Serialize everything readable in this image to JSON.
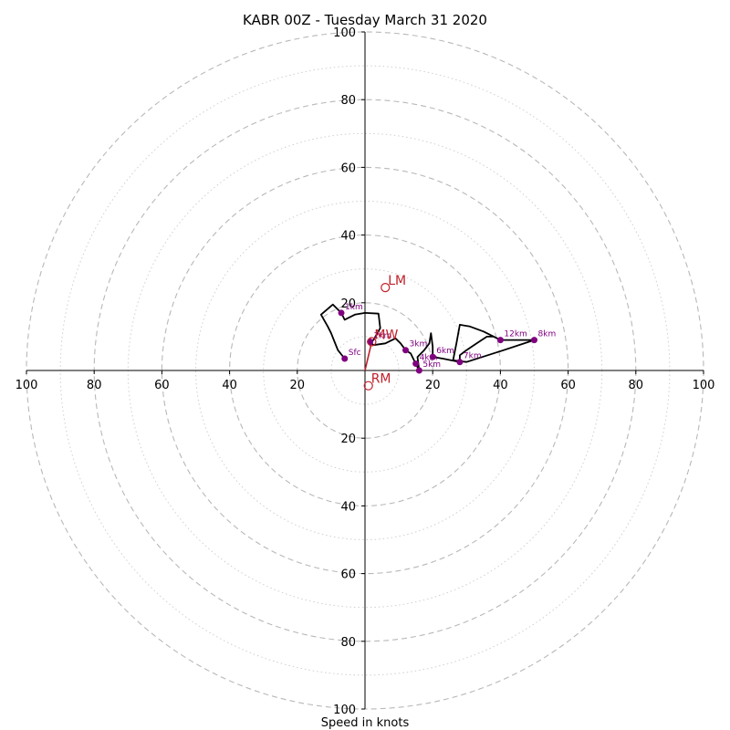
{
  "chart_data": {
    "type": "hodograph",
    "title": "KABR 00Z - Tuesday March 31 2020",
    "xlabel": "Speed in knots",
    "ylabel": "",
    "range": [
      -100,
      100
    ],
    "ticks": [
      "100",
      "80",
      "60",
      "40",
      "20",
      "20",
      "40",
      "60",
      "80",
      "100"
    ],
    "rings": [
      20,
      40,
      60,
      80,
      100
    ],
    "minor_rings": [
      10,
      30,
      50,
      70,
      90
    ],
    "grid": true,
    "hodograph_trace": [
      [
        -6,
        3.5
      ],
      [
        -8,
        6
      ],
      [
        -9,
        8.5
      ],
      [
        -10,
        11
      ],
      [
        -11,
        13
      ],
      [
        -13,
        16.5
      ],
      [
        -9.5,
        19.5
      ],
      [
        -7,
        17
      ],
      [
        -6,
        15
      ],
      [
        -3,
        16.5
      ],
      [
        0,
        17
      ],
      [
        4,
        16.8
      ],
      [
        4.5,
        12.5
      ],
      [
        2.5,
        9
      ],
      [
        1.5,
        8.5
      ],
      [
        2.5,
        7.5
      ],
      [
        6,
        8
      ],
      [
        9,
        9.5
      ],
      [
        10.5,
        8
      ],
      [
        12,
        6
      ],
      [
        13.5,
        5
      ],
      [
        15,
        2
      ],
      [
        16,
        0
      ],
      [
        15.5,
        4
      ],
      [
        17.5,
        6
      ],
      [
        19,
        8
      ],
      [
        19.5,
        11
      ],
      [
        20,
        7
      ],
      [
        20,
        4
      ],
      [
        23,
        3.5
      ],
      [
        28,
        2.5
      ],
      [
        28,
        4.5
      ],
      [
        30,
        6
      ],
      [
        33,
        8
      ],
      [
        36,
        10
      ],
      [
        38,
        10
      ],
      [
        40,
        9
      ],
      [
        42,
        9
      ],
      [
        50,
        9
      ],
      [
        41,
        6
      ],
      [
        30,
        2.5
      ],
      [
        26,
        3
      ],
      [
        27,
        8
      ],
      [
        28,
        13.5
      ],
      [
        31,
        13
      ],
      [
        35,
        11.5
      ],
      [
        40,
        9
      ]
    ],
    "height_markers": [
      {
        "label": "Sfc",
        "u": -6,
        "v": 3.5
      },
      {
        "label": "1km",
        "u": -7,
        "v": 17
      },
      {
        "label": "2km",
        "u": 1.5,
        "v": 8.5
      },
      {
        "label": "3km",
        "u": 12,
        "v": 6
      },
      {
        "label": "4km",
        "u": 15,
        "v": 2
      },
      {
        "label": "5km",
        "u": 16,
        "v": 0
      },
      {
        "label": "6km",
        "u": 20,
        "v": 4
      },
      {
        "label": "7km",
        "u": 28,
        "v": 2.5
      },
      {
        "label": "8km",
        "u": 50,
        "v": 9
      },
      {
        "label": "12km",
        "u": 40,
        "v": 9
      }
    ],
    "motion_points": [
      {
        "label": "LM",
        "u": 6,
        "v": 24.5
      },
      {
        "label": "MW",
        "u": 2,
        "v": 8.5
      },
      {
        "label": "RM",
        "u": 1,
        "v": -4.5
      }
    ],
    "shear_vector": {
      "from": [
        0,
        0
      ],
      "to": [
        2,
        8.5
      ]
    },
    "colors": {
      "trace": "#000000",
      "marker": "#800080",
      "motion": "#c0202a",
      "grid": "#b8b8b8",
      "axis": "#000000"
    }
  }
}
